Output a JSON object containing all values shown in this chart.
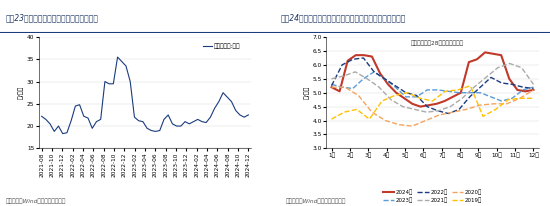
{
  "chart1": {
    "title": "图表23：近半月猪肉价格中枢环比延续回落",
    "ylabel": "元/公斤",
    "legend": "平均批发价:猪肉",
    "ylim": [
      15,
      40
    ],
    "yticks": [
      15,
      20,
      25,
      30,
      35,
      40
    ],
    "source": "资料来源：Wind，国盛证券研究所",
    "line_color": "#1a3c7e",
    "x_labels": [
      "2021-08",
      "2021-10",
      "2021-12",
      "2022-02",
      "2022-04",
      "2022-06",
      "2022-08",
      "2022-10",
      "2022-12",
      "2023-02",
      "2023-04",
      "2023-06",
      "2023-08",
      "2023-10",
      "2023-12",
      "2024-02",
      "2024-04",
      "2024-06",
      "2024-08",
      "2024-10",
      "2024-12"
    ],
    "y_values": [
      22.2,
      21.5,
      20.5,
      18.8,
      20.0,
      18.3,
      18.5,
      21.2,
      24.5,
      24.8,
      22.2,
      21.8,
      19.5,
      21.0,
      21.5,
      30.0,
      29.5,
      29.5,
      35.5,
      34.5,
      33.5,
      30.0,
      22.0,
      21.2,
      21.0,
      19.5,
      19.0,
      18.8,
      19.0,
      21.5,
      22.5,
      20.5,
      20.0,
      20.0,
      21.0,
      20.5,
      21.0,
      21.5,
      21.0,
      20.8,
      22.0,
      24.0,
      25.5,
      27.5,
      26.5,
      25.5,
      23.5,
      22.5,
      22.0,
      22.5
    ]
  },
  "chart2": {
    "title": "图表24：近半月蔬菜价格均值环比延续上涨、但弱于季节性",
    "ylabel": "元/公斤",
    "legend_title": "平均批发价：28种重点监测蔬菜",
    "ylim": [
      3.0,
      7.0
    ],
    "yticks": [
      3.0,
      3.5,
      4.0,
      4.5,
      5.0,
      5.5,
      6.0,
      6.5,
      7.0
    ],
    "source": "资料来源：Wind，国盛证券研究所",
    "x_labels": [
      "1月",
      "2月",
      "3月",
      "4月",
      "5月",
      "6月",
      "7月",
      "8月",
      "9月",
      "10月",
      "11月",
      "12月"
    ],
    "series": {
      "2024年": {
        "color": "#c0392b",
        "linestyle": "-",
        "linewidth": 1.5,
        "values": [
          5.2,
          5.05,
          6.15,
          6.35,
          6.35,
          6.3,
          5.7,
          5.3,
          5.0,
          4.8,
          4.6,
          4.5,
          4.55,
          4.6,
          4.7,
          4.85,
          5.0,
          6.1,
          6.2,
          6.45,
          6.4,
          6.35,
          5.5,
          5.1,
          5.05,
          5.1
        ]
      },
      "2023年": {
        "color": "#5b9bd5",
        "linestyle": "--",
        "linewidth": 1.0,
        "values": [
          5.3,
          5.2,
          5.15,
          5.5,
          5.75,
          5.5,
          5.2,
          4.85,
          4.85,
          5.1,
          5.1,
          5.05,
          5.0,
          5.0,
          5.0,
          4.85,
          4.7,
          4.8,
          5.1,
          5.2
        ]
      },
      "2022年": {
        "color": "#1a3c7e",
        "linestyle": "--",
        "linewidth": 1.0,
        "values": [
          5.25,
          6.0,
          6.2,
          6.25,
          5.75,
          5.5,
          5.25,
          5.0,
          4.9,
          4.5,
          4.35,
          4.25,
          4.4,
          4.85,
          5.2,
          5.55,
          5.35,
          5.3,
          5.2,
          5.15
        ]
      },
      "2021年": {
        "color": "#aaaaaa",
        "linestyle": "--",
        "linewidth": 1.0,
        "values": [
          5.5,
          5.6,
          5.75,
          5.5,
          5.2,
          4.75,
          4.5,
          4.4,
          4.3,
          4.35,
          4.5,
          4.8,
          5.2,
          5.55,
          5.9,
          6.05,
          5.9,
          5.3
        ]
      },
      "2020年": {
        "color": "#f4a460",
        "linestyle": "--",
        "linewidth": 1.0,
        "values": [
          5.2,
          5.2,
          4.9,
          4.3,
          4.0,
          3.85,
          3.8,
          4.0,
          4.2,
          4.3,
          4.4,
          4.55,
          4.6,
          4.6,
          4.8,
          5.1
        ]
      },
      "2019年": {
        "color": "#ffc000",
        "linestyle": "--",
        "linewidth": 1.0,
        "values": [
          4.05,
          4.3,
          4.4,
          4.05,
          4.7,
          4.9,
          5.0,
          4.8,
          4.7,
          5.05,
          5.1,
          5.25,
          4.15,
          4.4,
          4.75,
          4.8,
          4.8
        ]
      }
    }
  },
  "title_fontsize": 5.5,
  "label_fontsize": 4.5,
  "tick_fontsize": 4.2,
  "source_fontsize": 4.2,
  "header_bg": "#dce6f1",
  "plot_bg": "#ffffff",
  "fig_bg": "#ffffff"
}
